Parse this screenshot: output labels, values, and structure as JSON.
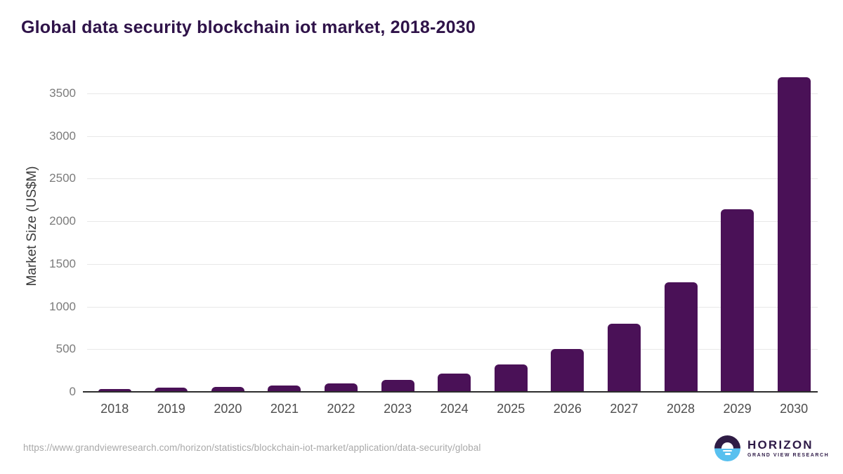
{
  "header": {
    "title": "Global data security blockchain iot market, 2018-2030"
  },
  "chart_data": {
    "type": "bar",
    "title": "Global data security blockchain iot market, 2018-2030",
    "categories": [
      "2018",
      "2019",
      "2020",
      "2021",
      "2022",
      "2023",
      "2024",
      "2025",
      "2026",
      "2027",
      "2028",
      "2029",
      "2030"
    ],
    "values": [
      35,
      46,
      60,
      77,
      100,
      144,
      218,
      320,
      500,
      795,
      1285,
      2143,
      3687
    ],
    "xlabel": "",
    "ylabel": "Market Size (US$M)",
    "ylim": [
      0,
      3750
    ],
    "yticks": [
      0,
      500,
      1000,
      1500,
      2000,
      2500,
      3000,
      3500
    ],
    "grid": "horizontal",
    "legend": "none",
    "bar_color": "#4a1157"
  },
  "colors": {
    "title": "#2f1349",
    "bar": "#4a1157",
    "gridline": "#e8e8e8",
    "axis_line": "#2d2d2d",
    "y_tick_text": "#7b7b7b",
    "x_tick_text": "#4d4d4d",
    "url_text": "#a9a9a9",
    "logo_purple": "#2e1a47",
    "logo_blue": "#58c0ef"
  },
  "footer": {
    "source_url": "https://www.grandviewresearch.com/horizon/statistics/blockchain-iot-market/application/data-security/global",
    "logo": {
      "brand": "HORIZON",
      "sub_brand": "GRAND VIEW RESEARCH",
      "icon": "horizon-sunrise-icon"
    }
  }
}
